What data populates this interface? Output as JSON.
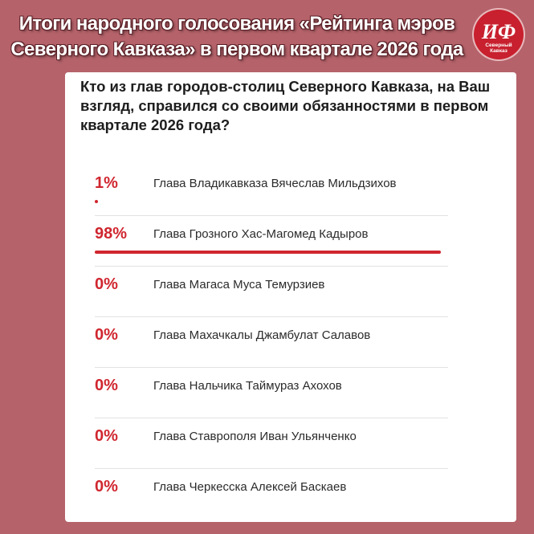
{
  "headline": {
    "line1": "Итоги народного голосования «Рейтинга мэров",
    "line2": "Северного Кавказа»  в первом квартале 2026 года"
  },
  "logo": {
    "mark": "ИФ",
    "caption_line1": "Северный",
    "caption_line2": "Кавказ"
  },
  "poll": {
    "question": "Кто из глав городов-столиц Северного Кавказа, на Ваш взгляд, справился со своими обязанностями в первом квартале 2026 года?",
    "options": [
      {
        "percent": "1%",
        "value": 1,
        "name": "Глава Владикавказа Вячеслав Мильдзихов"
      },
      {
        "percent": "98%",
        "value": 98,
        "name": "Глава Грозного Хас-Магомед Кадыров"
      },
      {
        "percent": "0%",
        "value": 0,
        "name": "Глава Магаса Муса Темурзиев"
      },
      {
        "percent": "0%",
        "value": 0,
        "name": "Глава Махачкалы Джамбулат Салавов"
      },
      {
        "percent": "0%",
        "value": 0,
        "name": "Глава Нальчика Таймураз Ахохов"
      },
      {
        "percent": "0%",
        "value": 0,
        "name": "Глава Ставрополя Иван Ульянченко"
      },
      {
        "percent": "0%",
        "value": 0,
        "name": "Глава Черкесска Алексей Баскаев"
      }
    ]
  },
  "colors": {
    "background": "#b5626a",
    "accent": "#d0262f",
    "logo": "#c8202e"
  }
}
